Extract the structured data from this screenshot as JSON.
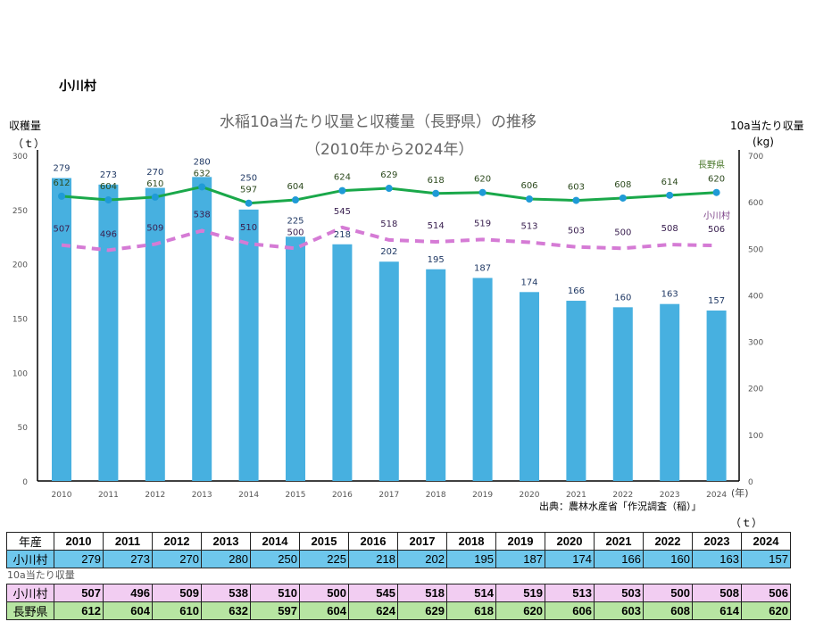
{
  "place": "小川村",
  "chart_data": {
    "type": "bar+line",
    "title": "水稲10a当たり収量と収穫量（長野県）の推移",
    "subtitle": "（2010年から2024年）",
    "ylabel_left": "収穫量",
    "ylabel_left_unit": "（ｔ）",
    "ylabel_right": "10a当たり収量",
    "ylabel_right_unit": "(kg)",
    "xunit": "(年)",
    "ylim_left": [
      0,
      300
    ],
    "yticks_left": [
      0,
      50,
      100,
      150,
      200,
      250,
      300
    ],
    "ylim_right": [
      0,
      700
    ],
    "yticks_right": [
      0,
      100,
      200,
      300,
      400,
      500,
      600,
      700
    ],
    "categories": [
      "2010",
      "2011",
      "2012",
      "2013",
      "2014",
      "2015",
      "2016",
      "2017",
      "2018",
      "2019",
      "2020",
      "2021",
      "2022",
      "2023",
      "2024"
    ],
    "series": [
      {
        "name": "小川村",
        "kind": "bar",
        "axis": "left",
        "color": "#47b0e0",
        "values": [
          279,
          273,
          270,
          280,
          250,
          225,
          218,
          202,
          195,
          187,
          174,
          166,
          160,
          163,
          157
        ]
      },
      {
        "name": "小川村",
        "kind": "dashed-line",
        "axis": "right",
        "color": "#d57bd5",
        "values": [
          507,
          496,
          509,
          538,
          510,
          500,
          545,
          518,
          514,
          519,
          513,
          503,
          500,
          508,
          506
        ]
      },
      {
        "name": "長野県",
        "kind": "line",
        "axis": "right",
        "color": "#1aa84a",
        "marker": "#1f9ad6",
        "values": [
          612,
          604,
          610,
          632,
          597,
          604,
          624,
          629,
          618,
          620,
          606,
          603,
          608,
          614,
          620
        ]
      }
    ],
    "grid": false,
    "source": "出典：農林水産省「作況調査（稲）」"
  },
  "table": {
    "unit": "（ｔ）",
    "header": "年産",
    "row1_label": "小川村",
    "yield_label": "10a当たり収量",
    "row2_label": "小川村",
    "row3_label": "長野県",
    "colors": {
      "harvest": "#6ec7ec",
      "village": "#f2cdf2",
      "prefecture": "#b7e5a2"
    }
  }
}
